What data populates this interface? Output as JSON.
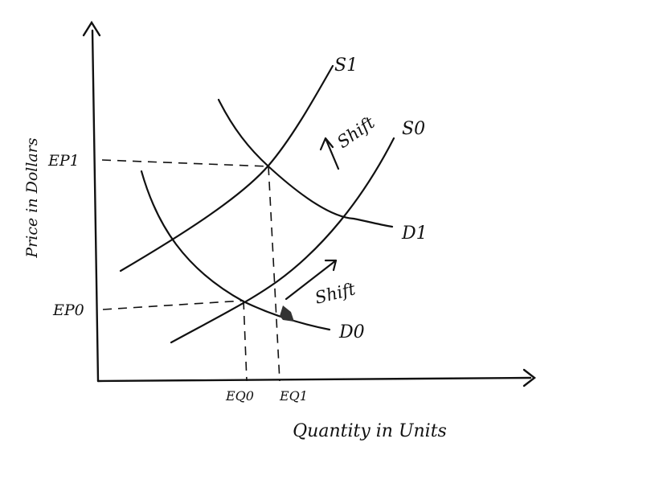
{
  "axes": {
    "y_label": "Price in Dollars",
    "x_label": "Quantity in Units"
  },
  "curves": {
    "s1": "S1",
    "s0": "S0",
    "d1": "D1",
    "d0": "D0"
  },
  "equilibrium": {
    "ep1": "EP1",
    "ep0": "EP0",
    "eq0": "EQ0",
    "eq1": "EQ1"
  },
  "annotations": {
    "shift_supply": "Shift",
    "shift_demand": "Shift"
  }
}
